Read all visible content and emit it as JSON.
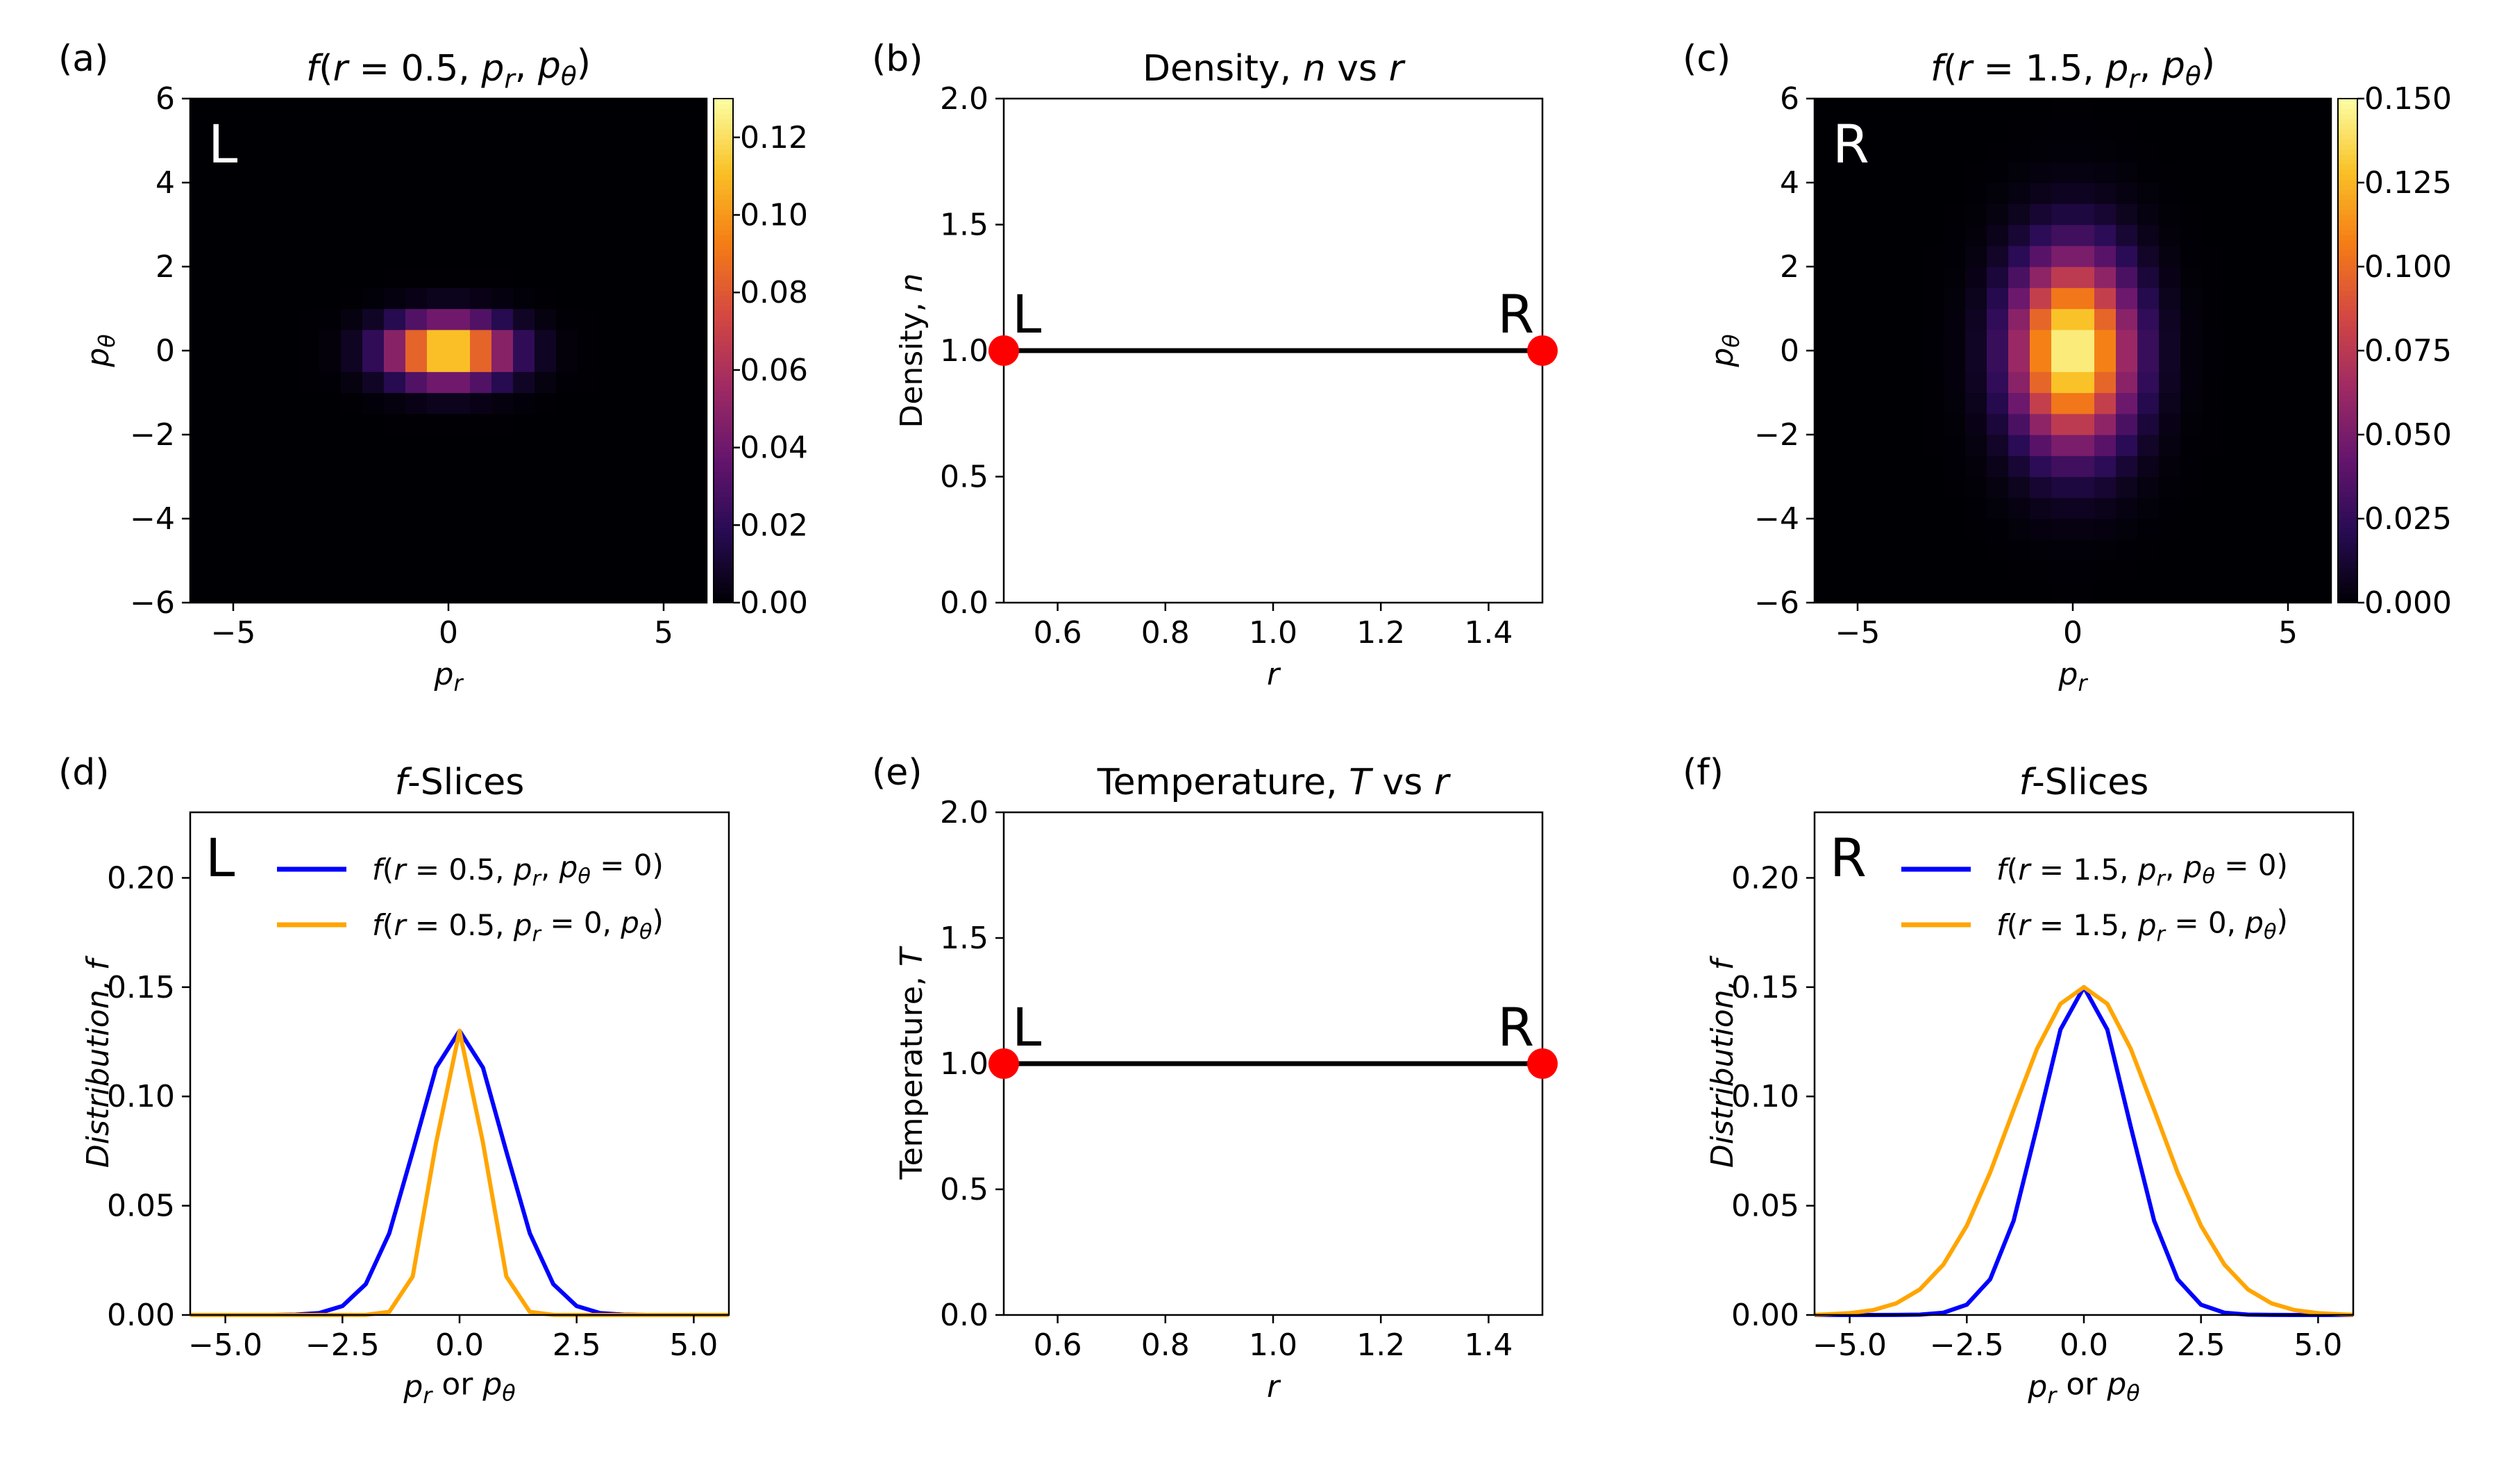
{
  "chart_data": [
    {
      "id": "a",
      "panel_label": "(a)",
      "type": "heatmap",
      "title_parts": [
        {
          "t": "f",
          "i": true
        },
        {
          "t": "(",
          "i": false
        },
        {
          "t": "r",
          "i": true
        },
        {
          "t": " = 0.5, ",
          "i": false
        },
        {
          "t": "p",
          "i": true
        },
        {
          "t": "r",
          "i": true,
          "sub": true
        },
        {
          "t": ", ",
          "i": false
        },
        {
          "t": "p",
          "i": true
        },
        {
          "t": "θ",
          "i": true,
          "sub": true
        },
        {
          "t": ")",
          "i": false
        }
      ],
      "xlabel_parts": [
        {
          "t": "p",
          "i": true
        },
        {
          "t": "r",
          "i": true,
          "sub": true
        }
      ],
      "ylabel_parts": [
        {
          "t": "p",
          "i": true
        },
        {
          "t": "θ",
          "i": true,
          "sub": true
        }
      ],
      "corner_label": "L",
      "xlim": [
        -6,
        6
      ],
      "ylim": [
        -6,
        6
      ],
      "xticks": [
        -5,
        0,
        5
      ],
      "yticks": [
        -6,
        -4,
        -2,
        0,
        2,
        4,
        6
      ],
      "xtick_labels": [
        "−5",
        "0",
        "5"
      ],
      "ytick_labels": [
        "−6",
        "−4",
        "−2",
        "0",
        "2",
        "4",
        "6"
      ],
      "grid_n": 24,
      "sigma_pr": 0.95,
      "sigma_ptheta": 0.5,
      "peak": 0.13,
      "colorbar": {
        "vmin": 0,
        "vmax": 0.13,
        "ticks": [
          0,
          0.02,
          0.04,
          0.06,
          0.08,
          0.1,
          0.12
        ],
        "tick_labels": [
          "0.00",
          "0.02",
          "0.04",
          "0.06",
          "0.08",
          "0.10",
          "0.12"
        ]
      }
    },
    {
      "id": "b",
      "panel_label": "(b)",
      "type": "line",
      "title_parts": [
        {
          "t": "Density, ",
          "i": false
        },
        {
          "t": "n",
          "i": true
        },
        {
          "t": " vs ",
          "i": false
        },
        {
          "t": "r",
          "i": true
        }
      ],
      "xlabel_parts": [
        {
          "t": "r",
          "i": true
        }
      ],
      "ylabel_parts": [
        {
          "t": "Density, ",
          "i": false
        },
        {
          "t": "n",
          "i": true
        }
      ],
      "xlim": [
        0.5,
        1.5
      ],
      "ylim": [
        0,
        2.0
      ],
      "xticks": [
        0.6,
        0.8,
        1.0,
        1.2,
        1.4
      ],
      "xtick_labels": [
        "0.6",
        "0.8",
        "1.0",
        "1.2",
        "1.4"
      ],
      "yticks": [
        0,
        0.5,
        1.0,
        1.5,
        2.0
      ],
      "ytick_labels": [
        "0.0",
        "0.5",
        "1.0",
        "1.5",
        "2.0"
      ],
      "x": [
        0.5,
        1.5
      ],
      "y": [
        1.0,
        1.0
      ],
      "markers": [
        {
          "x": 0.5,
          "y": 1.0,
          "label": "L"
        },
        {
          "x": 1.5,
          "y": 1.0,
          "label": "R"
        }
      ],
      "line_color": "#000000",
      "marker_color": "#ff0000"
    },
    {
      "id": "c",
      "panel_label": "(c)",
      "type": "heatmap",
      "title_parts": [
        {
          "t": "f",
          "i": true
        },
        {
          "t": "(",
          "i": false
        },
        {
          "t": "r",
          "i": true
        },
        {
          "t": " = 1.5, ",
          "i": false
        },
        {
          "t": "p",
          "i": true
        },
        {
          "t": "r",
          "i": true,
          "sub": true
        },
        {
          "t": ", ",
          "i": false
        },
        {
          "t": "p",
          "i": true
        },
        {
          "t": "θ",
          "i": true,
          "sub": true
        },
        {
          "t": ")",
          "i": false
        }
      ],
      "xlabel_parts": [
        {
          "t": "p",
          "i": true
        },
        {
          "t": "r",
          "i": true,
          "sub": true
        }
      ],
      "ylabel_parts": [
        {
          "t": "p",
          "i": true
        },
        {
          "t": "θ",
          "i": true,
          "sub": true
        }
      ],
      "corner_label": "R",
      "xlim": [
        -6,
        6
      ],
      "ylim": [
        -6,
        6
      ],
      "xticks": [
        -5,
        0,
        5
      ],
      "yticks": [
        -6,
        -4,
        -2,
        0,
        2,
        4,
        6
      ],
      "xtick_labels": [
        "−5",
        "0",
        "5"
      ],
      "ytick_labels": [
        "−6",
        "−4",
        "−2",
        "0",
        "2",
        "4",
        "6"
      ],
      "grid_n": 24,
      "sigma_pr": 0.95,
      "sigma_ptheta": 1.55,
      "peak": 0.15,
      "colorbar": {
        "vmin": 0,
        "vmax": 0.15,
        "ticks": [
          0,
          0.025,
          0.05,
          0.075,
          0.1,
          0.125,
          0.15
        ],
        "tick_labels": [
          "0.000",
          "0.025",
          "0.050",
          "0.075",
          "0.100",
          "0.125",
          "0.150"
        ]
      }
    },
    {
      "id": "d",
      "panel_label": "(d)",
      "type": "line",
      "title_parts": [
        {
          "t": "f",
          "i": true
        },
        {
          "t": "-Slices",
          "i": false
        }
      ],
      "xlabel_parts": [
        {
          "t": "p",
          "i": true
        },
        {
          "t": "r",
          "i": true,
          "sub": true
        },
        {
          "t": " or ",
          "i": false
        },
        {
          "t": "p",
          "i": true
        },
        {
          "t": "θ",
          "i": true,
          "sub": true
        }
      ],
      "ylabel_parts": [
        {
          "t": "Distribution, ",
          "i": true
        },
        {
          "t": "f",
          "i": true
        }
      ],
      "corner_label": "L",
      "xlim": [
        -5.75,
        5.75
      ],
      "ylim": [
        0,
        0.23
      ],
      "xticks": [
        -5,
        -2.5,
        0,
        2.5,
        5
      ],
      "xtick_labels": [
        "−5.0",
        "−2.5",
        "0.0",
        "2.5",
        "5.0"
      ],
      "yticks": [
        0,
        0.05,
        0.1,
        0.15,
        0.2
      ],
      "ytick_labels": [
        "0.00",
        "0.05",
        "0.10",
        "0.15",
        "0.20"
      ],
      "series": [
        {
          "name_parts": [
            {
              "t": "f",
              "i": true
            },
            {
              "t": "(",
              "i": false
            },
            {
              "t": "r",
              "i": true
            },
            {
              "t": " = 0.5, ",
              "i": false
            },
            {
              "t": "p",
              "i": true
            },
            {
              "t": "r",
              "i": true,
              "sub": true
            },
            {
              "t": ", ",
              "i": false
            },
            {
              "t": "p",
              "i": true
            },
            {
              "t": "θ",
              "i": true,
              "sub": true
            },
            {
              "t": " = 0)",
              "i": false
            }
          ],
          "color": "#0000ff",
          "sigma": 0.95,
          "peak": 0.13
        },
        {
          "name_parts": [
            {
              "t": "f",
              "i": true
            },
            {
              "t": "(",
              "i": false
            },
            {
              "t": "r",
              "i": true
            },
            {
              "t": " = 0.5, ",
              "i": false
            },
            {
              "t": "p",
              "i": true
            },
            {
              "t": "r",
              "i": true,
              "sub": true
            },
            {
              "t": " = 0, ",
              "i": false
            },
            {
              "t": "p",
              "i": true
            },
            {
              "t": "θ",
              "i": true,
              "sub": true
            },
            {
              "t": ")",
              "i": false
            }
          ],
          "color": "#ffa500",
          "sigma": 0.5,
          "peak": 0.13
        }
      ],
      "legend": "top-right"
    },
    {
      "id": "e",
      "panel_label": "(e)",
      "type": "line",
      "title_parts": [
        {
          "t": "Temperature, ",
          "i": false
        },
        {
          "t": "T",
          "i": true
        },
        {
          "t": " vs ",
          "i": false
        },
        {
          "t": "r",
          "i": true
        }
      ],
      "xlabel_parts": [
        {
          "t": "r",
          "i": true
        }
      ],
      "ylabel_parts": [
        {
          "t": "Temperature, ",
          "i": false
        },
        {
          "t": "T",
          "i": true
        }
      ],
      "xlim": [
        0.5,
        1.5
      ],
      "ylim": [
        0,
        2.0
      ],
      "xticks": [
        0.6,
        0.8,
        1.0,
        1.2,
        1.4
      ],
      "xtick_labels": [
        "0.6",
        "0.8",
        "1.0",
        "1.2",
        "1.4"
      ],
      "yticks": [
        0,
        0.5,
        1.0,
        1.5,
        2.0
      ],
      "ytick_labels": [
        "0.0",
        "0.5",
        "1.0",
        "1.5",
        "2.0"
      ],
      "x": [
        0.5,
        1.5
      ],
      "y": [
        1.0,
        1.0
      ],
      "markers": [
        {
          "x": 0.5,
          "y": 1.0,
          "label": "L"
        },
        {
          "x": 1.5,
          "y": 1.0,
          "label": "R"
        }
      ],
      "line_color": "#000000",
      "marker_color": "#ff0000"
    },
    {
      "id": "f",
      "panel_label": "(f)",
      "type": "line",
      "title_parts": [
        {
          "t": "f",
          "i": true
        },
        {
          "t": "-Slices",
          "i": false
        }
      ],
      "xlabel_parts": [
        {
          "t": "p",
          "i": true
        },
        {
          "t": "r",
          "i": true,
          "sub": true
        },
        {
          "t": " or ",
          "i": false
        },
        {
          "t": "p",
          "i": true
        },
        {
          "t": "θ",
          "i": true,
          "sub": true
        }
      ],
      "ylabel_parts": [
        {
          "t": "Distribution, ",
          "i": true
        },
        {
          "t": "f",
          "i": true
        }
      ],
      "corner_label": "R",
      "xlim": [
        -5.75,
        5.75
      ],
      "ylim": [
        0,
        0.23
      ],
      "xticks": [
        -5,
        -2.5,
        0,
        2.5,
        5
      ],
      "xtick_labels": [
        "−5.0",
        "−2.5",
        "0.0",
        "2.5",
        "5.0"
      ],
      "yticks": [
        0,
        0.05,
        0.1,
        0.15,
        0.2
      ],
      "ytick_labels": [
        "0.00",
        "0.05",
        "0.10",
        "0.15",
        "0.20"
      ],
      "series": [
        {
          "name_parts": [
            {
              "t": "f",
              "i": true
            },
            {
              "t": "(",
              "i": false
            },
            {
              "t": "r",
              "i": true
            },
            {
              "t": " = 1.5, ",
              "i": false
            },
            {
              "t": "p",
              "i": true
            },
            {
              "t": "r",
              "i": true,
              "sub": true
            },
            {
              "t": ", ",
              "i": false
            },
            {
              "t": "p",
              "i": true
            },
            {
              "t": "θ",
              "i": true,
              "sub": true
            },
            {
              "t": " = 0)",
              "i": false
            }
          ],
          "color": "#0000ff",
          "sigma": 0.95,
          "peak": 0.15
        },
        {
          "name_parts": [
            {
              "t": "f",
              "i": true
            },
            {
              "t": "(",
              "i": false
            },
            {
              "t": "r",
              "i": true
            },
            {
              "t": " = 1.5, ",
              "i": false
            },
            {
              "t": "p",
              "i": true
            },
            {
              "t": "r",
              "i": true,
              "sub": true
            },
            {
              "t": " = 0, ",
              "i": false
            },
            {
              "t": "p",
              "i": true
            },
            {
              "t": "θ",
              "i": true,
              "sub": true
            },
            {
              "t": ")",
              "i": false
            }
          ],
          "color": "#ffa500",
          "sigma": 1.55,
          "peak": 0.15
        }
      ],
      "legend": "top-right"
    }
  ]
}
